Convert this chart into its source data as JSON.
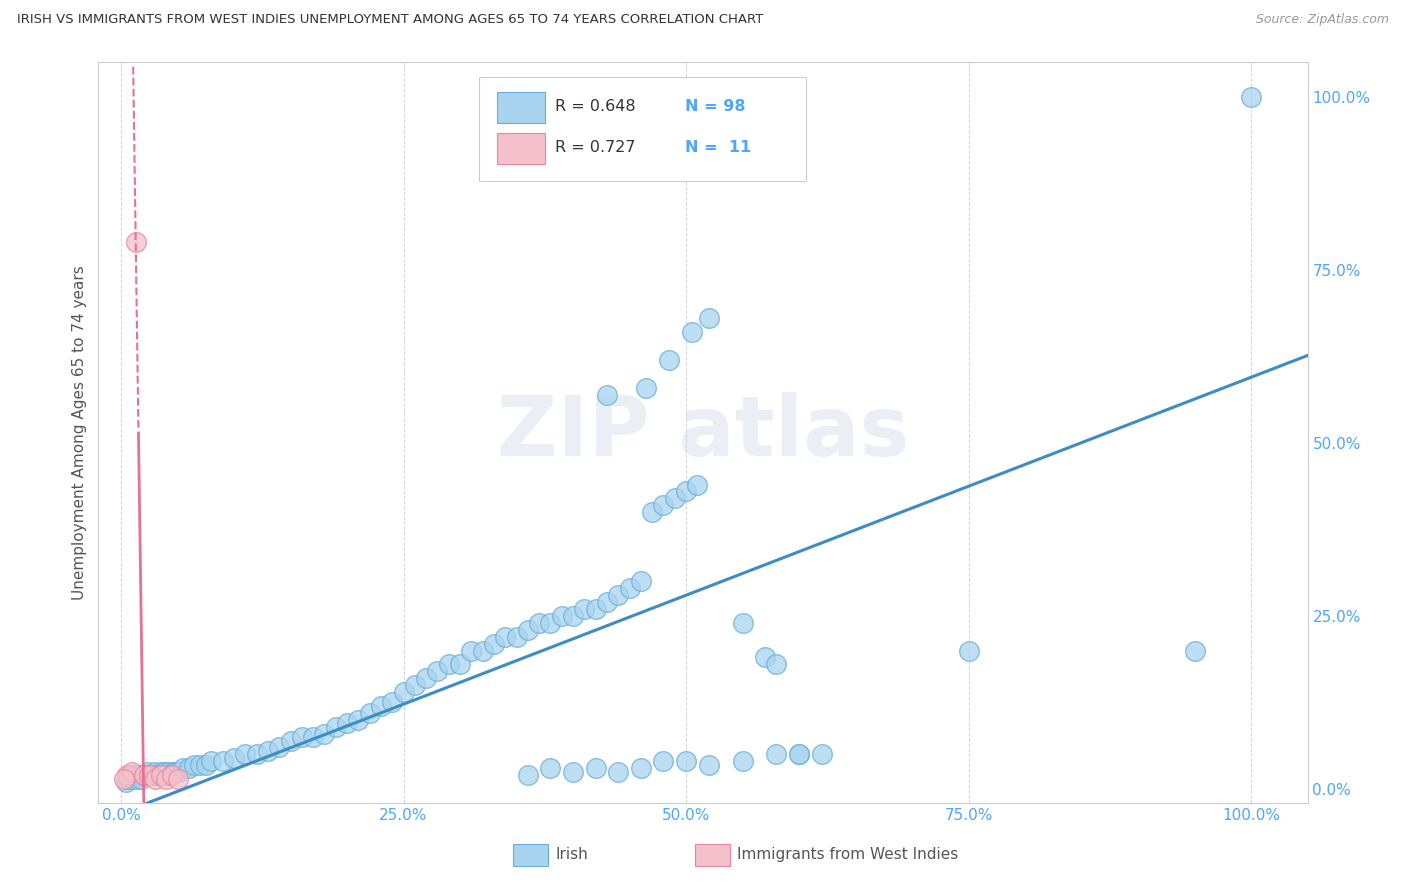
{
  "title": "IRISH VS IMMIGRANTS FROM WEST INDIES UNEMPLOYMENT AMONG AGES 65 TO 74 YEARS CORRELATION CHART",
  "source": "Source: ZipAtlas.com",
  "ylabel": "Unemployment Among Ages 65 to 74 years",
  "xlim": [
    -2,
    105
  ],
  "ylim": [
    -2,
    105
  ],
  "x_ticks": [
    0,
    25,
    50,
    75,
    100
  ],
  "x_tick_labels": [
    "0.0%",
    "25.0%",
    "50.0%",
    "75.0%",
    "100.0%"
  ],
  "y_ticks_right": [
    0,
    25,
    50,
    75,
    100
  ],
  "y_tick_labels_right": [
    "0.0%",
    "25.0%",
    "50.0%",
    "75.0%",
    "100.0%"
  ],
  "irish_R": 0.648,
  "irish_N": 98,
  "west_indies_R": 0.727,
  "west_indies_N": 11,
  "irish_color": "#a8d4f0",
  "irish_edge_color": "#6aaed6",
  "west_indies_color": "#f5c0cc",
  "west_indies_edge_color": "#e8879a",
  "irish_line_color": "#3d8cc4",
  "west_indies_line_color": "#e87090",
  "tick_color": "#4da6ff",
  "title_color": "#333333",
  "grid_color": "#d0d0d0",
  "background_color": "#FFFFFF",
  "irish_slope": 0.63,
  "irish_intercept": -3.5,
  "wi_slope": -45.0,
  "wi_intercept": 90.0,
  "irish_x": [
    0.4,
    0.6,
    0.8,
    1.0,
    1.2,
    1.4,
    1.6,
    1.8,
    2.0,
    2.2,
    2.4,
    2.6,
    2.8,
    3.0,
    3.2,
    3.4,
    3.6,
    3.8,
    4.0,
    4.2,
    4.4,
    4.6,
    4.8,
    5.0,
    5.5,
    6.0,
    6.5,
    7.0,
    7.5,
    8.0,
    9.0,
    10.0,
    11.0,
    12.0,
    13.0,
    14.0,
    15.0,
    16.0,
    17.0,
    18.0,
    19.0,
    20.0,
    21.0,
    22.0,
    23.0,
    24.0,
    25.0,
    26.0,
    27.0,
    28.0,
    29.0,
    30.0,
    31.0,
    32.0,
    33.0,
    34.0,
    35.0,
    36.0,
    37.0,
    38.0,
    39.0,
    40.0,
    41.0,
    42.0,
    43.0,
    44.0,
    45.0,
    46.0,
    47.0,
    48.0,
    49.0,
    50.0,
    51.0,
    43.0,
    46.5,
    48.5,
    50.5,
    52.0,
    55.0,
    57.0,
    58.0,
    60.0,
    62.0,
    75.0,
    95.0,
    100.0,
    36.0,
    38.0,
    40.0,
    42.0,
    44.0,
    46.0,
    48.0,
    50.0,
    52.0,
    55.0,
    58.0,
    60.0
  ],
  "irish_y": [
    1.0,
    1.5,
    2.0,
    1.5,
    2.0,
    1.5,
    2.0,
    1.5,
    2.0,
    2.0,
    2.5,
    2.0,
    2.0,
    2.5,
    2.0,
    2.0,
    2.5,
    2.5,
    2.0,
    2.5,
    2.0,
    2.5,
    2.5,
    2.5,
    3.0,
    3.0,
    3.5,
    3.5,
    3.5,
    4.0,
    4.0,
    4.5,
    5.0,
    5.0,
    5.5,
    6.0,
    7.0,
    7.5,
    7.5,
    8.0,
    9.0,
    9.5,
    10.0,
    11.0,
    12.0,
    12.5,
    14.0,
    15.0,
    16.0,
    17.0,
    18.0,
    18.0,
    20.0,
    20.0,
    21.0,
    22.0,
    22.0,
    23.0,
    24.0,
    24.0,
    25.0,
    25.0,
    26.0,
    26.0,
    27.0,
    28.0,
    29.0,
    30.0,
    40.0,
    41.0,
    42.0,
    43.0,
    44.0,
    57.0,
    58.0,
    62.0,
    66.0,
    68.0,
    24.0,
    19.0,
    18.0,
    5.0,
    5.0,
    20.0,
    20.0,
    100.0,
    2.0,
    3.0,
    2.5,
    3.0,
    2.5,
    3.0,
    4.0,
    4.0,
    3.5,
    4.0,
    5.0,
    5.0
  ],
  "wi_x": [
    0.5,
    1.0,
    1.3,
    2.0,
    2.5,
    3.0,
    3.5,
    4.0,
    4.5,
    5.0,
    0.3
  ],
  "wi_y": [
    2.0,
    2.5,
    79.0,
    2.0,
    2.0,
    1.5,
    2.0,
    1.5,
    2.0,
    1.5,
    1.5
  ]
}
